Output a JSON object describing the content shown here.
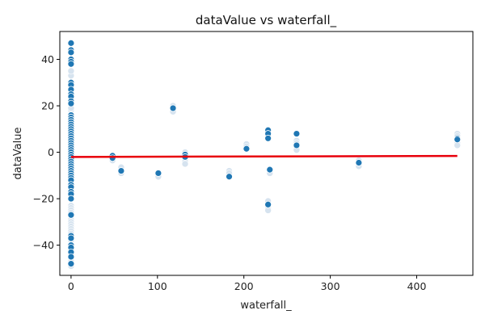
{
  "chart_data": {
    "type": "scatter",
    "title": "dataValue vs waterfall_",
    "xlabel": "waterfall_",
    "ylabel": "dataValue",
    "xlim": [
      -13,
      465
    ],
    "ylim": [
      -53,
      52
    ],
    "xticks": [
      0,
      100,
      200,
      300,
      400
    ],
    "yticks": [
      -40,
      -20,
      0,
      20,
      40
    ],
    "grid": false,
    "point_color": "#1f77b4",
    "faded_point_color": "#d6e3ef",
    "trend_color": "#e8000b",
    "points": [
      {
        "x": 0,
        "y": 47
      },
      {
        "x": 0,
        "y": 44
      },
      {
        "x": 0,
        "y": 43
      },
      {
        "x": 0,
        "y": 40
      },
      {
        "x": 0,
        "y": 39
      },
      {
        "x": 0,
        "y": 38
      },
      {
        "x": 0,
        "y": 30
      },
      {
        "x": 0,
        "y": 29
      },
      {
        "x": 0,
        "y": 27
      },
      {
        "x": 0,
        "y": 25
      },
      {
        "x": 0,
        "y": 24
      },
      {
        "x": 0,
        "y": 22
      },
      {
        "x": 0,
        "y": 21
      },
      {
        "x": 0,
        "y": 16
      },
      {
        "x": 0,
        "y": 15
      },
      {
        "x": 0,
        "y": 14
      },
      {
        "x": 0,
        "y": 13
      },
      {
        "x": 0,
        "y": 12
      },
      {
        "x": 0,
        "y": 11
      },
      {
        "x": 0,
        "y": 10
      },
      {
        "x": 0,
        "y": 9
      },
      {
        "x": 0,
        "y": 8
      },
      {
        "x": 0,
        "y": 7
      },
      {
        "x": 0,
        "y": 6
      },
      {
        "x": 0,
        "y": 5
      },
      {
        "x": 0,
        "y": 4
      },
      {
        "x": 0,
        "y": 3
      },
      {
        "x": 0,
        "y": 2
      },
      {
        "x": 0,
        "y": 1
      },
      {
        "x": 0,
        "y": 0
      },
      {
        "x": 0,
        "y": -1
      },
      {
        "x": 0,
        "y": -2
      },
      {
        "x": 0,
        "y": -3
      },
      {
        "x": 0,
        "y": -4
      },
      {
        "x": 0,
        "y": -5
      },
      {
        "x": 0,
        "y": -6
      },
      {
        "x": 0,
        "y": -7
      },
      {
        "x": 0,
        "y": -8
      },
      {
        "x": 0,
        "y": -9
      },
      {
        "x": 0,
        "y": -10
      },
      {
        "x": 0,
        "y": -11
      },
      {
        "x": 0,
        "y": -12
      },
      {
        "x": 0,
        "y": -14
      },
      {
        "x": 0,
        "y": -15
      },
      {
        "x": 0,
        "y": -17
      },
      {
        "x": 0,
        "y": -18
      },
      {
        "x": 0,
        "y": -20
      },
      {
        "x": 0,
        "y": -27
      },
      {
        "x": 0,
        "y": -36
      },
      {
        "x": 0,
        "y": -37
      },
      {
        "x": 0,
        "y": -40
      },
      {
        "x": 0,
        "y": -41
      },
      {
        "x": 0,
        "y": -43
      },
      {
        "x": 0,
        "y": -45
      },
      {
        "x": 0,
        "y": -48
      },
      {
        "x": 48,
        "y": -1.5
      },
      {
        "x": 48,
        "y": -2.5
      },
      {
        "x": 58,
        "y": -8
      },
      {
        "x": 101,
        "y": -9
      },
      {
        "x": 118,
        "y": 19
      },
      {
        "x": 132,
        "y": -1
      },
      {
        "x": 132,
        "y": -2
      },
      {
        "x": 183,
        "y": -10.5
      },
      {
        "x": 203,
        "y": 1.5
      },
      {
        "x": 228,
        "y": 9.5
      },
      {
        "x": 228,
        "y": 8
      },
      {
        "x": 228,
        "y": 6
      },
      {
        "x": 228,
        "y": -22.5
      },
      {
        "x": 230,
        "y": -7.5
      },
      {
        "x": 261,
        "y": 8
      },
      {
        "x": 261,
        "y": 3
      },
      {
        "x": 333,
        "y": -4.5
      },
      {
        "x": 447,
        "y": 6
      },
      {
        "x": 447,
        "y": 5.5
      }
    ],
    "faded_points": [
      {
        "x": 0,
        "y": -23
      },
      {
        "x": 0,
        "y": -24
      },
      {
        "x": 0,
        "y": -25
      },
      {
        "x": 0,
        "y": -26
      },
      {
        "x": 0,
        "y": -28
      },
      {
        "x": 0,
        "y": -29
      },
      {
        "x": 0,
        "y": -30
      },
      {
        "x": 0,
        "y": -31
      },
      {
        "x": 0,
        "y": -32
      },
      {
        "x": 0,
        "y": -33
      },
      {
        "x": 0,
        "y": -34
      },
      {
        "x": 0,
        "y": -35
      },
      {
        "x": 0,
        "y": -38
      },
      {
        "x": 0,
        "y": -42
      },
      {
        "x": 0,
        "y": -44
      },
      {
        "x": 0,
        "y": -46
      },
      {
        "x": 0,
        "y": -47
      },
      {
        "x": 0,
        "y": -49
      },
      {
        "x": 0,
        "y": 18
      },
      {
        "x": 0,
        "y": 33
      },
      {
        "x": 0,
        "y": 35
      },
      {
        "x": 0,
        "y": 26
      },
      {
        "x": 0,
        "y": 19
      },
      {
        "x": 48,
        "y": -3.5
      },
      {
        "x": 58,
        "y": -6.5
      },
      {
        "x": 58,
        "y": -9
      },
      {
        "x": 101,
        "y": -10.5
      },
      {
        "x": 118,
        "y": 17.5
      },
      {
        "x": 118,
        "y": 20
      },
      {
        "x": 132,
        "y": -3
      },
      {
        "x": 132,
        "y": -4
      },
      {
        "x": 132,
        "y": -5
      },
      {
        "x": 132,
        "y": 0
      },
      {
        "x": 183,
        "y": -8
      },
      {
        "x": 183,
        "y": -9
      },
      {
        "x": 203,
        "y": 3.5
      },
      {
        "x": 203,
        "y": 2.5
      },
      {
        "x": 228,
        "y": -21
      },
      {
        "x": 228,
        "y": -24
      },
      {
        "x": 228,
        "y": -25
      },
      {
        "x": 230,
        "y": -9
      },
      {
        "x": 261,
        "y": 5
      },
      {
        "x": 261,
        "y": 4
      },
      {
        "x": 261,
        "y": 2
      },
      {
        "x": 261,
        "y": 1
      },
      {
        "x": 333,
        "y": -3.5
      },
      {
        "x": 333,
        "y": -6
      },
      {
        "x": 447,
        "y": 8
      },
      {
        "x": 447,
        "y": 7
      },
      {
        "x": 447,
        "y": 4
      },
      {
        "x": 447,
        "y": 3
      }
    ],
    "trend_line": {
      "x": [
        0,
        447
      ],
      "y": [
        -2.0,
        -1.6
      ]
    }
  }
}
